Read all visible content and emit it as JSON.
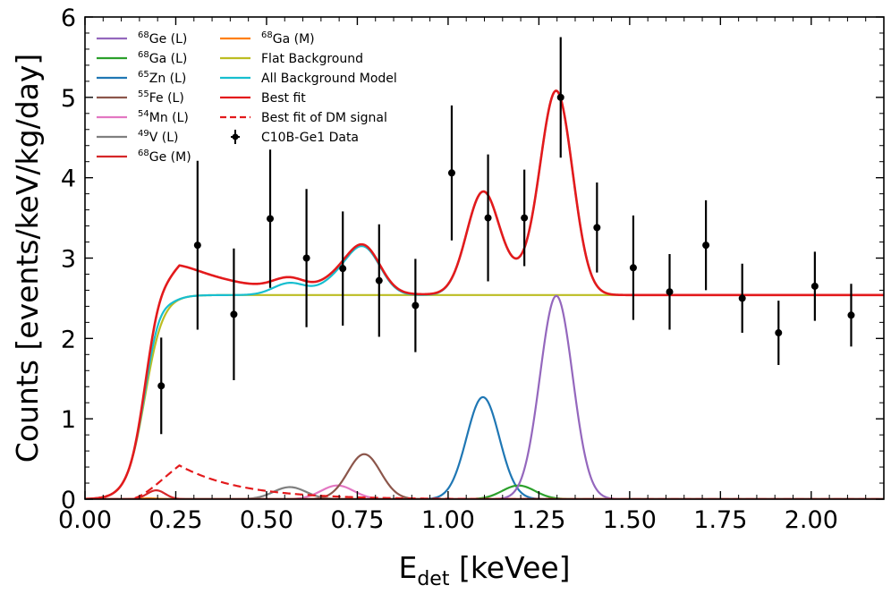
{
  "chart_data": {
    "type": "line",
    "xlabel_main": "E",
    "xlabel_sub": "det",
    "xlabel_unit": " [keVee]",
    "ylabel": "Counts [events/keV/kg/day]",
    "xlim": [
      0.0,
      2.2
    ],
    "ylim": [
      0,
      6
    ],
    "x_ticks": [
      "0.00",
      "0.25",
      "0.50",
      "0.75",
      "1.00",
      "1.25",
      "1.50",
      "1.75",
      "2.00"
    ],
    "y_ticks": [
      "0",
      "1",
      "2",
      "3",
      "4",
      "5",
      "6"
    ],
    "grid": false,
    "legend_position": "top-left",
    "flat_background_level": 2.54,
    "threshold": {
      "center": 0.165,
      "width": 0.025
    },
    "components": [
      {
        "key": "ge68_L",
        "sup": "68",
        "name": "Ge (L)",
        "color": "#9467bd",
        "style": "solid",
        "peak": 1.298,
        "sigma": 0.045,
        "amp": 2.53
      },
      {
        "key": "ga68_L",
        "sup": "68",
        "name": "Ga (L)",
        "color": "#2ca02c",
        "style": "solid",
        "peak": 1.194,
        "sigma": 0.045,
        "amp": 0.17
      },
      {
        "key": "zn65_L",
        "sup": "65",
        "name": "Zn (L)",
        "color": "#1f77b4",
        "style": "solid",
        "peak": 1.096,
        "sigma": 0.045,
        "amp": 1.27
      },
      {
        "key": "fe55_L",
        "sup": "55",
        "name": "Fe (L)",
        "color": "#8c564b",
        "style": "solid",
        "peak": 0.769,
        "sigma": 0.045,
        "amp": 0.56
      },
      {
        "key": "mn54_L",
        "sup": "54",
        "name": "Mn (L)",
        "color": "#e377c2",
        "style": "solid",
        "peak": 0.695,
        "sigma": 0.045,
        "amp": 0.17
      },
      {
        "key": "v49_L",
        "sup": "49",
        "name": "V (L)",
        "color": "#7f7f7f",
        "style": "solid",
        "peak": 0.564,
        "sigma": 0.045,
        "amp": 0.15
      },
      {
        "key": "ge68_M",
        "sup": "68",
        "name": "Ge (M)",
        "color": "#d62728",
        "style": "solid",
        "peak": 0.196,
        "sigma": 0.025,
        "amp": 0.11
      },
      {
        "key": "ga68_M",
        "sup": "68",
        "name": "Ga (M)",
        "color": "#ff7f0e",
        "style": "solid",
        "peak": 0.175,
        "sigma": 0.025,
        "amp": 0.01
      },
      {
        "key": "flat",
        "sup": "",
        "name": "Flat Background",
        "color": "#bcbd22",
        "style": "solid"
      },
      {
        "key": "all_bkg",
        "sup": "",
        "name": "All Background Model",
        "color": "#17becf",
        "style": "solid"
      },
      {
        "key": "best_fit",
        "sup": "",
        "name": "Best fit",
        "color": "#e31a1c",
        "style": "solid"
      },
      {
        "key": "dm_signal",
        "sup": "",
        "name": "Best fit of DM signal",
        "color": "#e31a1c",
        "style": "dashed",
        "amp": 0.42,
        "decay": 0.17
      }
    ],
    "data_series": {
      "name": "C10B-Ge1 Data",
      "color": "#000000",
      "points": [
        {
          "x": 0.21,
          "y": 1.41,
          "err": 0.6
        },
        {
          "x": 0.31,
          "y": 3.16,
          "err": 1.05
        },
        {
          "x": 0.41,
          "y": 2.3,
          "err": 0.82
        },
        {
          "x": 0.51,
          "y": 3.49,
          "err": 0.86
        },
        {
          "x": 0.61,
          "y": 3.0,
          "err": 0.86
        },
        {
          "x": 0.71,
          "y": 2.87,
          "err": 0.71
        },
        {
          "x": 0.81,
          "y": 2.72,
          "err": 0.7
        },
        {
          "x": 0.91,
          "y": 2.41,
          "err": 0.58
        },
        {
          "x": 1.01,
          "y": 4.06,
          "err": 0.84
        },
        {
          "x": 1.11,
          "y": 3.5,
          "err": 0.79
        },
        {
          "x": 1.21,
          "y": 3.5,
          "err": 0.6
        },
        {
          "x": 1.31,
          "y": 5.0,
          "err": 0.75
        },
        {
          "x": 1.41,
          "y": 3.38,
          "err": 0.56
        },
        {
          "x": 1.51,
          "y": 2.88,
          "err": 0.65
        },
        {
          "x": 1.61,
          "y": 2.58,
          "err": 0.47
        },
        {
          "x": 1.71,
          "y": 3.16,
          "err": 0.56
        },
        {
          "x": 1.81,
          "y": 2.5,
          "err": 0.43
        },
        {
          "x": 1.91,
          "y": 2.07,
          "err": 0.4
        },
        {
          "x": 2.01,
          "y": 2.65,
          "err": 0.43
        },
        {
          "x": 2.11,
          "y": 2.29,
          "err": 0.39
        }
      ]
    }
  }
}
